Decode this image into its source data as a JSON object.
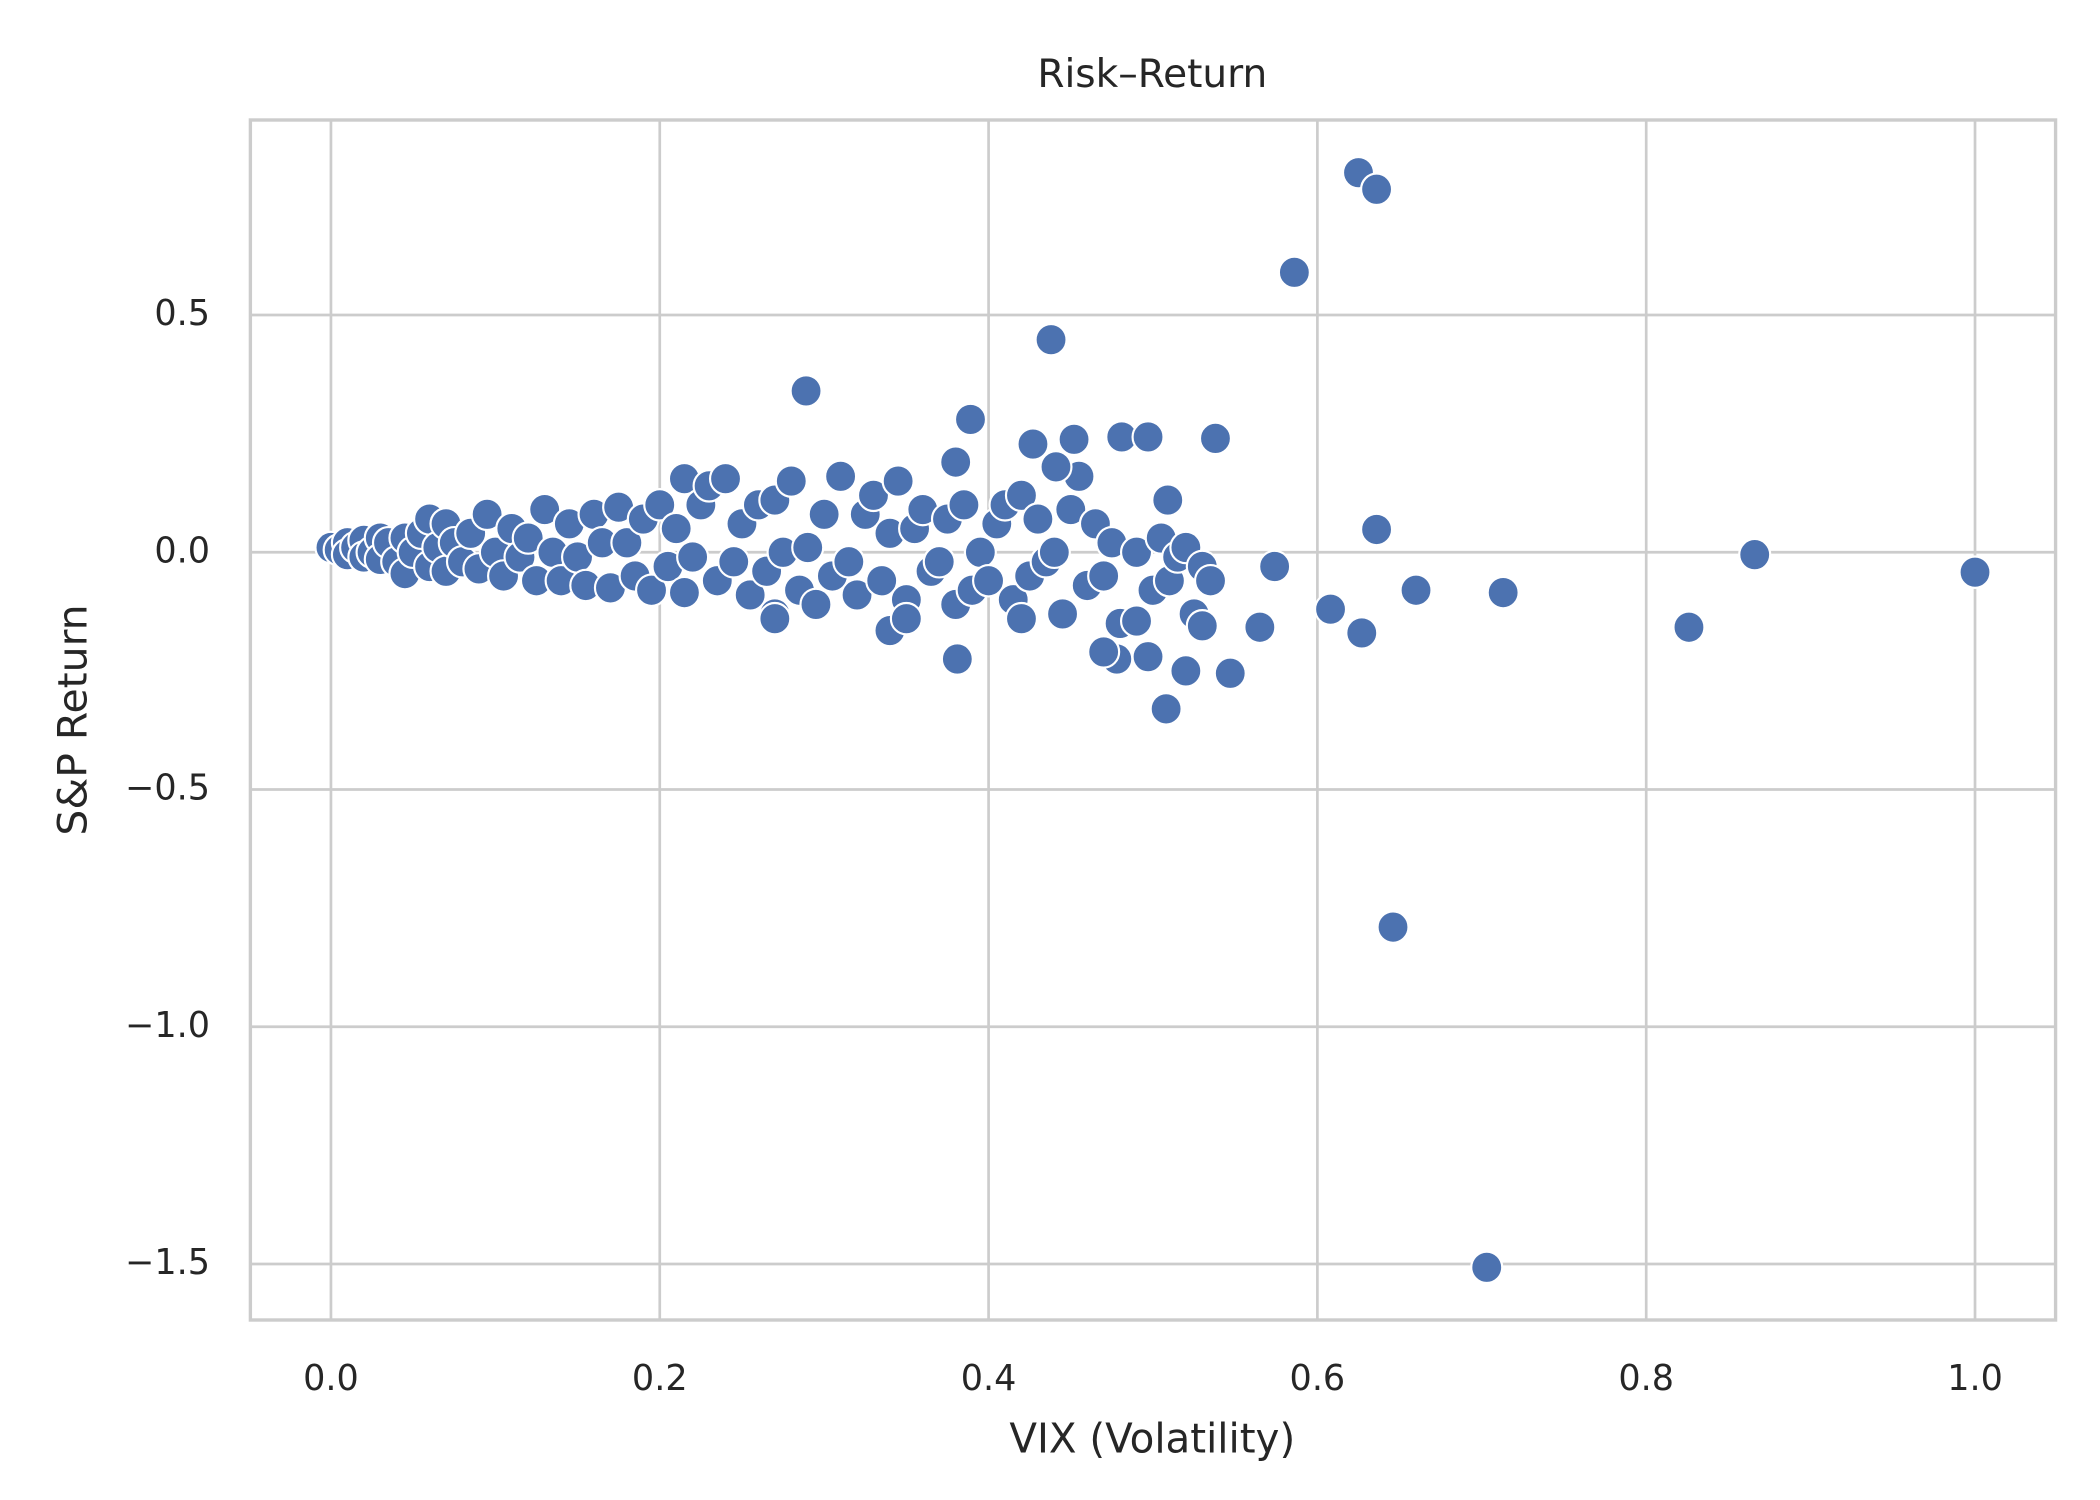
{
  "chart_data": {
    "type": "scatter",
    "title": "Risk–Return",
    "x_label": "VIX (Volatility)",
    "y_label": "S&P Return",
    "color": "#4c72b0",
    "grid": true,
    "xlim": [
      -0.049,
      1.049
    ],
    "ylim": [
      -1.618,
      0.911
    ],
    "xticks": [
      {
        "value": 0,
        "label": "0.0"
      },
      {
        "value": 0.2,
        "label": "0.2"
      },
      {
        "value": 0.4,
        "label": "0.4"
      },
      {
        "value": 0.6,
        "label": "0.6"
      },
      {
        "value": 0.8,
        "label": "0.8"
      },
      {
        "value": 1,
        "label": "1.0"
      }
    ],
    "yticks": [
      {
        "value": -1.5,
        "label": "−1.5"
      },
      {
        "value": -1,
        "label": "−1.0"
      },
      {
        "value": -0.5,
        "label": "−0.5"
      },
      {
        "value": 0,
        "label": "0.0"
      },
      {
        "value": 0.5,
        "label": "0.5"
      }
    ],
    "x": [
      0,
      0.005,
      0.01,
      0.01,
      0.015,
      0.02,
      0.02,
      0.025,
      0.03,
      0.03,
      0.035,
      0.04,
      0.045,
      0.045,
      0.05,
      0.055,
      0.06,
      0.06,
      0.065,
      0.07,
      0.07,
      0.075,
      0.08,
      0.085,
      0.09,
      0.095,
      0.1,
      0.105,
      0.11,
      0.115,
      0.12,
      0.125,
      0.13,
      0.135,
      0.14,
      0.145,
      0.15,
      0.155,
      0.16,
      0.165,
      0.17,
      0.175,
      0.18,
      0.185,
      0.19,
      0.195,
      0.2,
      0.205,
      0.21,
      0.215,
      0.215,
      0.22,
      0.225,
      0.23,
      0.235,
      0.24,
      0.245,
      0.25,
      0.255,
      0.26,
      0.265,
      0.27,
      0.27,
      0.275,
      0.28,
      0.285,
      0.29,
      0.295,
      0.3,
      0.305,
      0.31,
      0.315,
      0.32,
      0.325,
      0.33,
      0.335,
      0.34,
      0.345,
      0.35,
      0.355,
      0.36,
      0.365,
      0.37,
      0.375,
      0.38,
      0.385,
      0.39,
      0.395,
      0.4,
      0.405,
      0.41,
      0.415,
      0.42,
      0.425,
      0.43,
      0.435,
      0.44,
      0.445,
      0.45,
      0.455,
      0.46,
      0.465,
      0.47,
      0.475,
      0.48,
      0.49,
      0.5,
      0.505,
      0.51,
      0.515,
      0.52,
      0.525,
      0.53,
      0.535,
      0.625,
      0.636,
      0.586,
      0.438,
      0.289,
      0.389,
      0.427,
      0.452,
      0.481,
      0.497,
      0.538,
      0.38,
      0.441,
      0.509,
      0.636,
      0.574,
      0.866,
      1.0,
      0.66,
      0.713,
      0.608,
      0.627,
      0.565,
      0.826,
      0.52,
      0.547,
      0.508,
      0.646,
      0.703,
      0.381,
      0.478,
      0.497,
      0.47,
      0.53,
      0.49,
      0.34,
      0.35,
      0.42,
      0.27
    ],
    "y": [
      0.01,
      0.005,
      0.02,
      -0.005,
      0.01,
      0.025,
      -0.01,
      0,
      0.03,
      -0.015,
      0.02,
      -0.02,
      0.03,
      -0.045,
      0,
      0.04,
      -0.03,
      0.07,
      0.01,
      -0.04,
      0.06,
      0.02,
      -0.02,
      0.04,
      -0.035,
      0.08,
      0,
      -0.05,
      0.05,
      -0.01,
      0.03,
      -0.06,
      0.09,
      0,
      -0.06,
      0.06,
      -0.01,
      -0.07,
      0.08,
      0.02,
      -0.075,
      0.095,
      0.02,
      -0.05,
      0.07,
      -0.08,
      0.1,
      -0.03,
      0.05,
      0.155,
      -0.085,
      -0.01,
      0.1,
      0.14,
      -0.06,
      0.155,
      -0.02,
      0.06,
      -0.09,
      0.1,
      -0.04,
      -0.13,
      0.11,
      0,
      0.15,
      -0.08,
      0.01,
      -0.11,
      0.08,
      -0.05,
      0.16,
      -0.02,
      -0.09,
      0.08,
      0.12,
      -0.06,
      0.04,
      0.15,
      -0.1,
      0.05,
      0.09,
      -0.04,
      -0.02,
      0.07,
      -0.11,
      0.1,
      -0.08,
      0,
      -0.06,
      0.06,
      0.1,
      -0.1,
      0.12,
      -0.05,
      0.07,
      -0.02,
      0,
      -0.13,
      0.09,
      0.16,
      -0.07,
      0.06,
      -0.05,
      0.02,
      -0.15,
      0,
      -0.08,
      0.03,
      -0.06,
      -0.01,
      0.01,
      -0.13,
      -0.03,
      -0.06,
      0.8,
      0.765,
      0.59,
      0.448,
      0.34,
      0.28,
      0.228,
      0.238,
      0.243,
      0.243,
      0.24,
      0.19,
      0.18,
      0.11,
      0.048,
      -0.03,
      -0.005,
      -0.042,
      -0.08,
      -0.085,
      -0.12,
      -0.17,
      -0.158,
      -0.158,
      -0.25,
      -0.255,
      -0.33,
      -0.79,
      -1.507,
      -0.225,
      -0.225,
      -0.22,
      -0.21,
      -0.155,
      -0.145,
      -0.165,
      -0.14,
      -0.14,
      -0.14
    ]
  }
}
